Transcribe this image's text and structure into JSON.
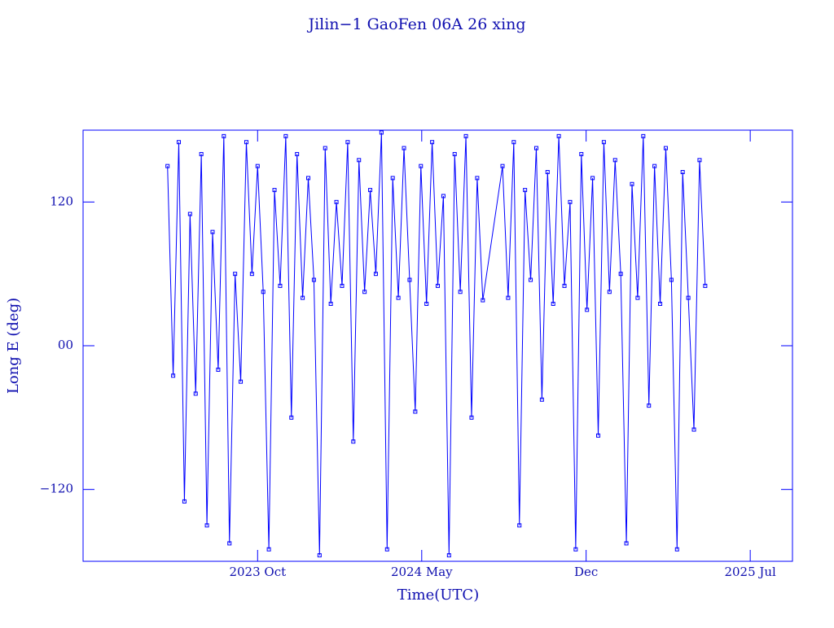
{
  "chart_data": {
    "type": "line",
    "title": "Jilin−1 GaoFen 06A 26 xing",
    "x_label": "Time(UTC)",
    "y_label": "Long E (deg)",
    "xlim": [
      2023.13,
      2025.65
    ],
    "ylim": [
      -180,
      180
    ],
    "xticks": [
      {
        "value": 2023.75,
        "label": "2023 Oct"
      },
      {
        "value": 2024.333,
        "label": "2024 May"
      },
      {
        "value": 2024.917,
        "label": "Dec"
      },
      {
        "value": 2025.5,
        "label": "2025 Jul"
      }
    ],
    "yticks": [
      {
        "value": -120,
        "label": "−120"
      },
      {
        "value": 0,
        "label": "00"
      },
      120
    ],
    "color": "#0000ff",
    "x": [
      2023.43,
      2023.45,
      2023.47,
      2023.49,
      2023.51,
      2023.53,
      2023.55,
      2023.57,
      2023.59,
      2023.61,
      2023.63,
      2023.65,
      2023.67,
      2023.69,
      2023.71,
      2023.73,
      2023.75,
      2023.77,
      2023.79,
      2023.81,
      2023.83,
      2023.85,
      2023.87,
      2023.89,
      2023.91,
      2023.93,
      2023.95,
      2023.97,
      2023.99,
      2024.01,
      2024.03,
      2024.05,
      2024.07,
      2024.09,
      2024.11,
      2024.13,
      2024.15,
      2024.17,
      2024.19,
      2024.21,
      2024.23,
      2024.25,
      2024.27,
      2024.29,
      2024.31,
      2024.33,
      2024.35,
      2024.37,
      2024.39,
      2024.41,
      2024.43,
      2024.45,
      2024.47,
      2024.49,
      2024.51,
      2024.53,
      2024.55,
      2024.62,
      2024.64,
      2024.66,
      2024.68,
      2024.7,
      2024.72,
      2024.74,
      2024.76,
      2024.78,
      2024.8,
      2024.82,
      2024.84,
      2024.86,
      2024.88,
      2024.9,
      2024.92,
      2024.94,
      2024.96,
      2024.98,
      2025.0,
      2025.02,
      2025.04,
      2025.06,
      2025.08,
      2025.1,
      2025.12,
      2025.14,
      2025.16,
      2025.18,
      2025.2,
      2025.22,
      2025.24,
      2025.26,
      2025.28,
      2025.3,
      2025.32,
      2025.34
    ],
    "values": [
      150,
      -25,
      170,
      -130,
      110,
      -40,
      160,
      -150,
      95,
      -20,
      175,
      -165,
      60,
      -30,
      170,
      60,
      150,
      45,
      -170,
      130,
      50,
      175,
      -60,
      160,
      40,
      140,
      55,
      -175,
      165,
      35,
      120,
      50,
      170,
      -80,
      155,
      45,
      130,
      60,
      178,
      -170,
      140,
      40,
      165,
      55,
      -55,
      150,
      35,
      170,
      50,
      125,
      -175,
      160,
      45,
      175,
      -60,
      140,
      38,
      150,
      40,
      170,
      -150,
      130,
      55,
      165,
      -45,
      145,
      35,
      175,
      50,
      120,
      -170,
      160,
      30,
      140,
      -75,
      170,
      45,
      155,
      60,
      -165,
      135,
      40,
      175,
      -50,
      150,
      35,
      165,
      55,
      -170,
      145,
      40,
      -70,
      155,
      50
    ]
  }
}
